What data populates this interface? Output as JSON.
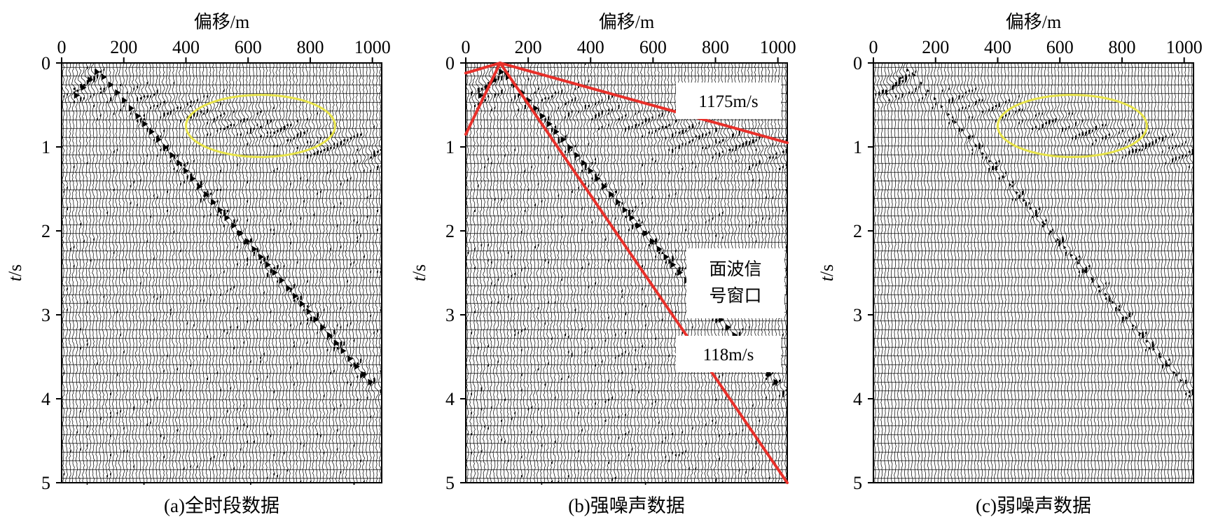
{
  "figure": {
    "panels": [
      {
        "id": "a",
        "caption": "(a)全时段数据",
        "xlabel": "偏移/m",
        "ylabel_italic": "t",
        "ylabel_unit": "/s",
        "ellipse": {
          "center_x": 640,
          "center_t": 0.75,
          "radius_x": 240,
          "radius_t": 0.37,
          "color": "#e8e44a"
        },
        "annotations": [],
        "noise": "strong"
      },
      {
        "id": "b",
        "caption": "(b)强噪声数据",
        "xlabel": "偏移/m",
        "ylabel_italic": "t",
        "ylabel_unit": "/s",
        "lines_color": "#e8302a",
        "annotations": [
          {
            "text": "1175m/s"
          },
          {
            "text": "面波信"
          },
          {
            "text": "号窗口"
          },
          {
            "text": "118m/s"
          }
        ],
        "noise": "strong"
      },
      {
        "id": "c",
        "caption": "(c)弱噪声数据",
        "xlabel": "偏移/m",
        "ylabel_italic": "t",
        "ylabel_unit": "/s",
        "ellipse": {
          "center_x": 640,
          "center_t": 0.75,
          "radius_x": 240,
          "radius_t": 0.37,
          "color": "#e8e44a"
        },
        "annotations": [],
        "noise": "weak"
      }
    ]
  },
  "chart_data": [
    {
      "type": "seismic-gather",
      "title": "(a)全时段数据",
      "xlabel": "偏移/m",
      "ylabel": "t/s",
      "xlim": [
        0,
        1030
      ],
      "ylim": [
        0,
        5
      ],
      "y_inverted": true,
      "x_ticks": [
        0,
        200,
        400,
        600,
        800,
        1000
      ],
      "y_ticks": [
        0,
        1,
        2,
        3,
        4,
        5
      ],
      "annotations": [
        {
          "type": "ellipse",
          "color": "yellow",
          "center": [
            640,
            0.75
          ]
        }
      ]
    },
    {
      "type": "seismic-gather",
      "title": "(b)强噪声数据",
      "xlabel": "偏移/m",
      "ylabel": "t/s",
      "xlim": [
        0,
        1030
      ],
      "ylim": [
        0,
        5
      ],
      "y_inverted": true,
      "x_ticks": [
        0,
        200,
        400,
        600,
        800,
        1000
      ],
      "y_ticks": [
        0,
        1,
        2,
        3,
        4,
        5
      ],
      "lines": [
        {
          "label": "1175m/s",
          "color": "#e8302a",
          "x": [
            110,
            1030
          ],
          "y": [
            0.0,
            0.95
          ]
        },
        {
          "label": "118m/s",
          "color": "#e8302a",
          "x": [
            110,
            1030
          ],
          "y": [
            0.0,
            5.0
          ]
        },
        {
          "label": "",
          "color": "#e8302a",
          "x": [
            0,
            110
          ],
          "y": [
            0.12,
            0.0
          ]
        },
        {
          "label": "",
          "color": "#e8302a",
          "x": [
            0,
            110
          ],
          "y": [
            0.85,
            0.0
          ]
        }
      ],
      "window_label": "面波信号窗口"
    },
    {
      "type": "seismic-gather",
      "title": "(c)弱噪声数据",
      "xlabel": "偏移/m",
      "ylabel": "t/s",
      "xlim": [
        0,
        1030
      ],
      "ylim": [
        0,
        5
      ],
      "y_inverted": true,
      "x_ticks": [
        0,
        200,
        400,
        600,
        800,
        1000
      ],
      "y_ticks": [
        0,
        1,
        2,
        3,
        4,
        5
      ],
      "annotations": [
        {
          "type": "ellipse",
          "color": "yellow",
          "center": [
            640,
            0.75
          ]
        }
      ]
    }
  ]
}
